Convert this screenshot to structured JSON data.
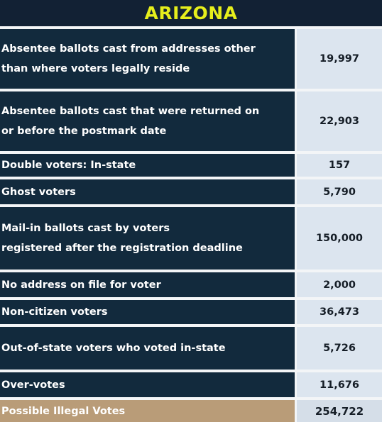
{
  "title": "ARIZONA",
  "rows": [
    {
      "label": "Absentee ballots cast from addresses other\nthan where voters legally reside",
      "value": "19,997"
    },
    {
      "label": "Absentee ballots cast that were returned on\nor before the postmark date",
      "value": "22,903"
    },
    {
      "label": "Double voters: In-state",
      "value": "157"
    },
    {
      "label": "Ghost voters",
      "value": "5,790"
    },
    {
      "label": "Mail-in ballots cast by voters\nregistered after the registration deadline",
      "value": "150,000"
    },
    {
      "label": "No address on file for voter",
      "value": "2,000"
    },
    {
      "label": "Non-citizen voters",
      "value": "36,473"
    },
    {
      "label": "Out-of-state voters who voted in-state",
      "value": "5,726"
    },
    {
      "label": "Over-votes",
      "value": "11,676"
    }
  ],
  "total": {
    "label": "Possible Illegal Votes",
    "value": "254,722"
  },
  "colors": {
    "title_text": "#e6ee1c",
    "dark_navy": "#122a3d",
    "value_bg": "#dce5ef",
    "total_label_bg": "#b99c78"
  }
}
